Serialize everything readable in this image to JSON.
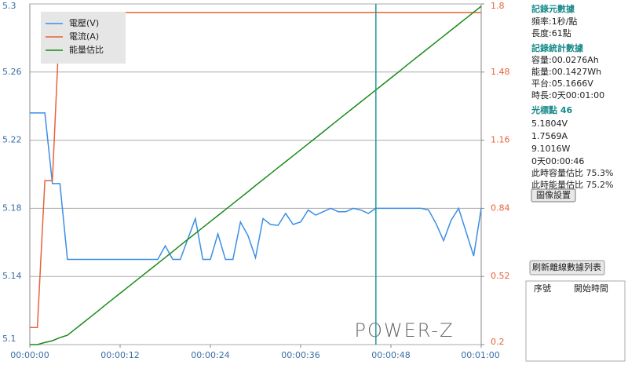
{
  "chart_data": {
    "type": "line",
    "x": [
      0,
      1,
      2,
      3,
      4,
      5,
      6,
      7,
      8,
      9,
      10,
      11,
      12,
      13,
      14,
      15,
      16,
      17,
      18,
      19,
      20,
      21,
      22,
      23,
      24,
      25,
      26,
      27,
      28,
      29,
      30,
      31,
      32,
      33,
      34,
      35,
      36,
      37,
      38,
      39,
      40,
      41,
      42,
      43,
      44,
      45,
      46,
      47,
      48,
      49,
      50,
      51,
      52,
      53,
      54,
      55,
      56,
      57,
      58,
      59,
      60
    ],
    "xlim": [
      0,
      60
    ],
    "xticks": [
      {
        "value": 0,
        "label": "00:00:00"
      },
      {
        "value": 12,
        "label": "00:00:12"
      },
      {
        "value": 24,
        "label": "00:00:24"
      },
      {
        "value": 36,
        "label": "00:00:36"
      },
      {
        "value": 48,
        "label": "00:00:48"
      },
      {
        "value": 60,
        "label": "00:01:00"
      }
    ],
    "ylim": [
      5.1,
      5.3
    ],
    "yticks": [
      5.1,
      5.14,
      5.18,
      5.22,
      5.26,
      5.3
    ],
    "y2lim": [
      0.2,
      1.8
    ],
    "y2ticks": [
      0.2,
      0.52,
      0.84,
      1.16,
      1.48,
      1.8
    ],
    "grid": true,
    "cursor_x": 46,
    "cursor_color": "#1a9a9a",
    "watermark": "POWER-Z",
    "series": [
      {
        "name": "電壓(V)",
        "color": "#3a8ee6",
        "values": [
          5.236,
          5.236,
          5.236,
          5.1945,
          5.1945,
          5.15,
          5.15,
          5.15,
          5.15,
          5.15,
          5.15,
          5.15,
          5.15,
          5.15,
          5.15,
          5.15,
          5.15,
          5.15,
          5.158,
          5.15,
          5.15,
          5.162,
          5.174,
          5.15,
          5.15,
          5.165,
          5.15,
          5.15,
          5.172,
          5.164,
          5.151,
          5.174,
          5.1705,
          5.17,
          5.177,
          5.1705,
          5.172,
          5.179,
          5.176,
          5.178,
          5.18,
          5.178,
          5.178,
          5.18,
          5.179,
          5.177,
          5.18,
          5.18,
          5.18,
          5.18,
          5.18,
          5.18,
          5.18,
          5.179,
          5.171,
          5.161,
          5.173,
          5.18,
          5.166,
          5.152,
          5.18
        ]
      },
      {
        "name": "電流(A)",
        "color": "#e8623a",
        "axis": "y2",
        "values": [
          0.28,
          0.28,
          0.97,
          0.97,
          1.75,
          1.76,
          1.76,
          1.76,
          1.76,
          1.76,
          1.76,
          1.76,
          1.76,
          1.76,
          1.76,
          1.76,
          1.76,
          1.76,
          1.76,
          1.76,
          1.76,
          1.76,
          1.76,
          1.76,
          1.76,
          1.76,
          1.76,
          1.76,
          1.76,
          1.76,
          1.76,
          1.76,
          1.76,
          1.76,
          1.76,
          1.76,
          1.76,
          1.76,
          1.76,
          1.76,
          1.76,
          1.76,
          1.76,
          1.76,
          1.76,
          1.76,
          1.76,
          1.76,
          1.76,
          1.76,
          1.76,
          1.76,
          1.76,
          1.76,
          1.76,
          1.76,
          1.76,
          1.76,
          1.76,
          1.76,
          1.76
        ]
      },
      {
        "name": "能量估比",
        "color": "#1a8a1a",
        "axis": "y2",
        "values": [
          0.2,
          0.2,
          0.21,
          0.218,
          0.233,
          0.244,
          0.272,
          0.3,
          0.328,
          0.356,
          0.385,
          0.413,
          0.441,
          0.469,
          0.497,
          0.525,
          0.553,
          0.581,
          0.609,
          0.637,
          0.666,
          0.694,
          0.722,
          0.75,
          0.778,
          0.806,
          0.834,
          0.862,
          0.89,
          0.918,
          0.947,
          0.975,
          1.003,
          1.031,
          1.059,
          1.087,
          1.115,
          1.143,
          1.171,
          1.199,
          1.228,
          1.256,
          1.284,
          1.312,
          1.34,
          1.368,
          1.396,
          1.424,
          1.452,
          1.48,
          1.509,
          1.537,
          1.565,
          1.593,
          1.621,
          1.649,
          1.677,
          1.705,
          1.733,
          1.761,
          1.789
        ]
      }
    ]
  },
  "panel": {
    "meta_title": "記錄元數據",
    "freq": "頻率:1秒/點",
    "length": "長度:61點",
    "stats_title": "記錄統計數據",
    "capacity": "容量:00.0276Ah",
    "energy": "能量:00.1427Wh",
    "plateau": "平台:05.1666V",
    "duration": "時長:0天00:01:00",
    "cursor_title": "光標點 46",
    "voltage": "5.1804V",
    "current": "1.7569A",
    "power": "9.1016W",
    "time": "0天00:00:46",
    "cap_ratio": "此時容量估比 75.3%",
    "energy_ratio": "此時能量估比 75.2%",
    "settings_button": "圖像設置",
    "refresh_button": "刷新離線數據列表",
    "table_headers": [
      "序號",
      "開始時間"
    ]
  }
}
